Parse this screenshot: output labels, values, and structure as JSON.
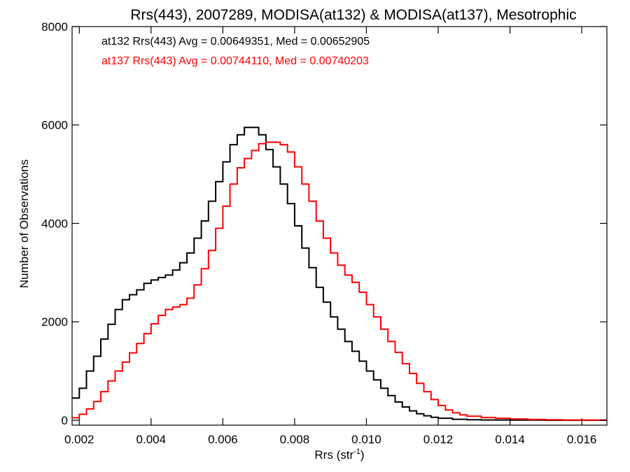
{
  "chart_data": {
    "type": "line",
    "title": "Rrs(443), 2007289, MODISA(at132) & MODISA(at137), Mesotrophic",
    "xlabel": "Rrs (str",
    "xlabel_sup": "-1",
    "xlabel_close": ")",
    "ylabel": "Number of Observations",
    "xlim": [
      0.0018,
      0.0167
    ],
    "ylim": [
      -100,
      8000
    ],
    "x_ticks": [
      "0.002",
      "0.004",
      "0.006",
      "0.008",
      "0.010",
      "0.012",
      "0.014",
      "0.016"
    ],
    "x_tick_values": [
      0.002,
      0.004,
      0.006,
      0.008,
      0.01,
      0.012,
      0.014,
      0.016
    ],
    "y_ticks": [
      "0",
      "2000",
      "4000",
      "6000",
      "8000"
    ],
    "y_tick_values": [
      0,
      2000,
      4000,
      6000,
      8000
    ],
    "grid": false,
    "annotations": [
      {
        "text": "at132 Rrs(443) Avg = 0.00649351, Med = 0.00652905",
        "color": "#000000"
      },
      {
        "text": "at137 Rrs(443) Avg = 0.00744110, Med = 0.00740203",
        "color": "#ff0000"
      }
    ],
    "series": [
      {
        "color": "#000000",
        "points": [
          [
            0.0018,
            450
          ],
          [
            0.002,
            650
          ],
          [
            0.0022,
            1000
          ],
          [
            0.0024,
            1300
          ],
          [
            0.0026,
            1650
          ],
          [
            0.0028,
            1950
          ],
          [
            0.003,
            2250
          ],
          [
            0.0032,
            2450
          ],
          [
            0.0034,
            2550
          ],
          [
            0.0036,
            2650
          ],
          [
            0.0038,
            2780
          ],
          [
            0.004,
            2850
          ],
          [
            0.0042,
            2900
          ],
          [
            0.0044,
            2950
          ],
          [
            0.0046,
            3050
          ],
          [
            0.0048,
            3200
          ],
          [
            0.005,
            3400
          ],
          [
            0.0052,
            3700
          ],
          [
            0.0054,
            4050
          ],
          [
            0.0056,
            4450
          ],
          [
            0.0058,
            4850
          ],
          [
            0.006,
            5250
          ],
          [
            0.0062,
            5600
          ],
          [
            0.0064,
            5800
          ],
          [
            0.0066,
            5950
          ],
          [
            0.0068,
            5950
          ],
          [
            0.007,
            5800
          ],
          [
            0.0072,
            5500
          ],
          [
            0.0074,
            5150
          ],
          [
            0.0076,
            4800
          ],
          [
            0.0078,
            4400
          ],
          [
            0.008,
            3950
          ],
          [
            0.0082,
            3500
          ],
          [
            0.0084,
            3100
          ],
          [
            0.0086,
            2700
          ],
          [
            0.0088,
            2400
          ],
          [
            0.009,
            2100
          ],
          [
            0.0092,
            1850
          ],
          [
            0.0094,
            1600
          ],
          [
            0.0096,
            1400
          ],
          [
            0.0098,
            1200
          ],
          [
            0.01,
            1000
          ],
          [
            0.0102,
            820
          ],
          [
            0.0104,
            650
          ],
          [
            0.0106,
            500
          ],
          [
            0.0108,
            370
          ],
          [
            0.011,
            270
          ],
          [
            0.0112,
            190
          ],
          [
            0.0114,
            130
          ],
          [
            0.0116,
            90
          ],
          [
            0.0118,
            60
          ],
          [
            0.012,
            40
          ],
          [
            0.0124,
            20
          ],
          [
            0.0128,
            10
          ],
          [
            0.0132,
            5
          ],
          [
            0.014,
            2
          ],
          [
            0.015,
            0
          ],
          [
            0.0167,
            0
          ]
        ]
      },
      {
        "color": "#ff0000",
        "points": [
          [
            0.0018,
            50
          ],
          [
            0.002,
            120
          ],
          [
            0.0022,
            230
          ],
          [
            0.0024,
            380
          ],
          [
            0.0026,
            580
          ],
          [
            0.0028,
            800
          ],
          [
            0.003,
            1000
          ],
          [
            0.0032,
            1180
          ],
          [
            0.0034,
            1370
          ],
          [
            0.0036,
            1560
          ],
          [
            0.0038,
            1760
          ],
          [
            0.004,
            1960
          ],
          [
            0.0042,
            2130
          ],
          [
            0.0044,
            2250
          ],
          [
            0.0046,
            2300
          ],
          [
            0.0048,
            2350
          ],
          [
            0.005,
            2480
          ],
          [
            0.0052,
            2750
          ],
          [
            0.0054,
            3080
          ],
          [
            0.0056,
            3450
          ],
          [
            0.0058,
            3900
          ],
          [
            0.006,
            4350
          ],
          [
            0.0062,
            4800
          ],
          [
            0.0064,
            5130
          ],
          [
            0.0066,
            5320
          ],
          [
            0.0068,
            5480
          ],
          [
            0.007,
            5620
          ],
          [
            0.0072,
            5650
          ],
          [
            0.0074,
            5650
          ],
          [
            0.0076,
            5600
          ],
          [
            0.0078,
            5450
          ],
          [
            0.008,
            5150
          ],
          [
            0.0082,
            4800
          ],
          [
            0.0084,
            4450
          ],
          [
            0.0086,
            4050
          ],
          [
            0.0088,
            3700
          ],
          [
            0.009,
            3400
          ],
          [
            0.0092,
            3150
          ],
          [
            0.0094,
            2950
          ],
          [
            0.0096,
            2800
          ],
          [
            0.0098,
            2600
          ],
          [
            0.01,
            2350
          ],
          [
            0.0102,
            2100
          ],
          [
            0.0104,
            1850
          ],
          [
            0.0106,
            1600
          ],
          [
            0.0108,
            1380
          ],
          [
            0.011,
            1150
          ],
          [
            0.0112,
            950
          ],
          [
            0.0114,
            750
          ],
          [
            0.0116,
            580
          ],
          [
            0.0118,
            420
          ],
          [
            0.012,
            300
          ],
          [
            0.0122,
            210
          ],
          [
            0.0124,
            150
          ],
          [
            0.0126,
            110
          ],
          [
            0.0128,
            80
          ],
          [
            0.0132,
            55
          ],
          [
            0.0136,
            40
          ],
          [
            0.014,
            25
          ],
          [
            0.0145,
            15
          ],
          [
            0.015,
            8
          ],
          [
            0.0155,
            4
          ],
          [
            0.016,
            2
          ],
          [
            0.0167,
            0
          ]
        ]
      }
    ]
  }
}
